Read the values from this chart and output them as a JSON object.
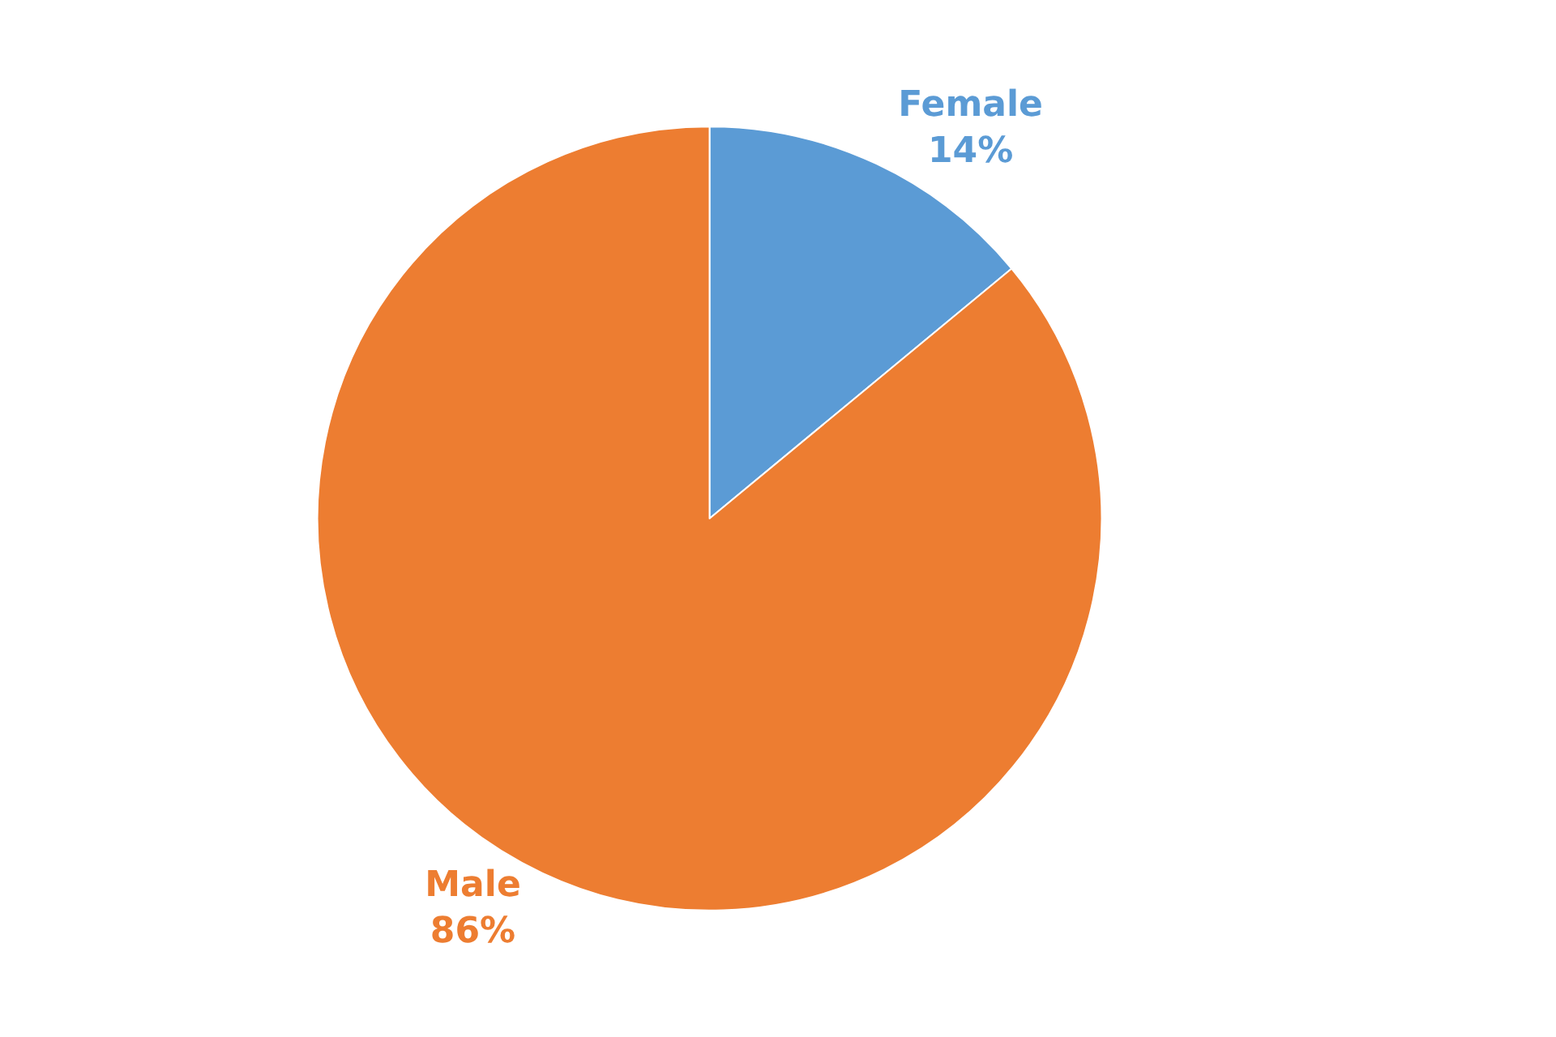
{
  "chart_data": {
    "type": "pie",
    "categories": [
      "Female",
      "Male"
    ],
    "values": [
      14,
      86
    ],
    "colors": [
      "#5b9bd5",
      "#ed7d31"
    ],
    "value_labels": [
      "14%",
      "86%"
    ],
    "legend": false
  }
}
